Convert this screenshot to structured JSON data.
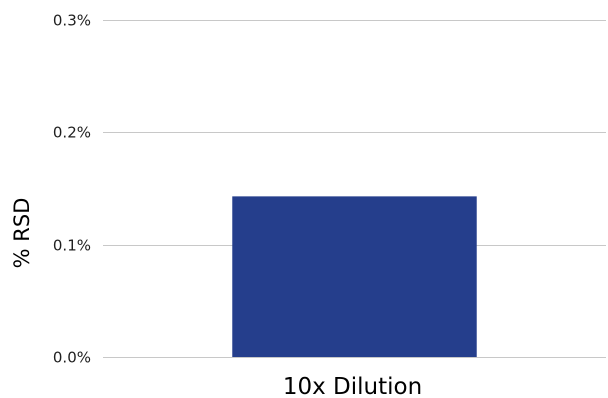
{
  "chart_data": {
    "type": "bar",
    "title": "",
    "xlabel": "",
    "ylabel": "% RSD",
    "categories": [
      "10x Dilution"
    ],
    "values": [
      0.143
    ],
    "value_unit": "%",
    "ylim": [
      0,
      0.3
    ],
    "yticks": [
      0,
      0.1,
      0.2,
      0.3
    ],
    "ytick_labels": [
      "0.0%",
      "0.1%",
      "0.2%",
      "0.3%"
    ],
    "grid": true,
    "legend": "none",
    "colors": {
      "bar": "#253e8c",
      "gridline": "#c8c8c8"
    }
  }
}
